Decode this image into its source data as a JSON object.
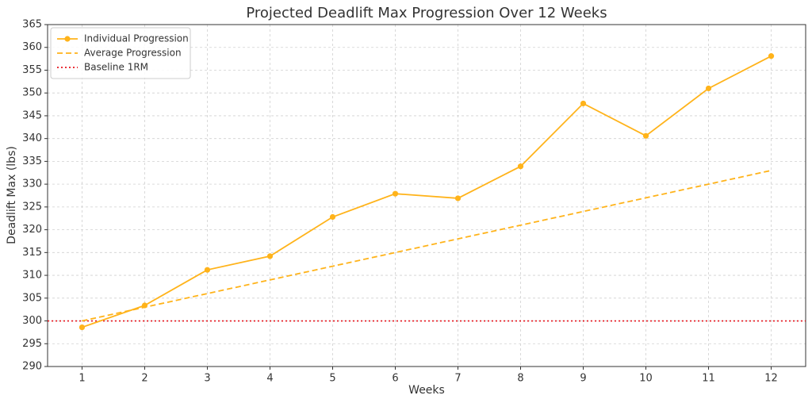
{
  "chart_data": {
    "type": "line",
    "title": "Projected Deadlift Max Progression Over 12 Weeks",
    "xlabel": "Weeks",
    "ylabel": "Deadlift Max (lbs)",
    "x": [
      1,
      2,
      3,
      4,
      5,
      6,
      7,
      8,
      9,
      10,
      11,
      12
    ],
    "series": [
      {
        "name": "Individual Progression",
        "color": "#ffb31a",
        "dash": "solid",
        "marker": "circle",
        "values": [
          298.6,
          303.4,
          311.2,
          314.2,
          322.8,
          327.9,
          326.9,
          333.9,
          347.7,
          340.6,
          351.0,
          358.1
        ]
      },
      {
        "name": "Average Progression",
        "color": "#ffb31a",
        "dash": "dashed",
        "marker": "none",
        "values": [
          300,
          303,
          306,
          309,
          312,
          315,
          318,
          321,
          324,
          327,
          330,
          333
        ]
      }
    ],
    "hlines": [
      {
        "name": "Baseline 1RM",
        "value": 300,
        "color": "#e8141c",
        "dash": "dotted"
      }
    ],
    "xlim": [
      0.45,
      12.55
    ],
    "xticks": [
      1,
      2,
      3,
      4,
      5,
      6,
      7,
      8,
      9,
      10,
      11,
      12
    ],
    "ylim": [
      290,
      365
    ],
    "yticks": [
      290,
      295,
      300,
      305,
      310,
      315,
      320,
      325,
      330,
      335,
      340,
      345,
      350,
      355,
      360,
      365
    ],
    "grid": true,
    "legend": "upper-left"
  }
}
